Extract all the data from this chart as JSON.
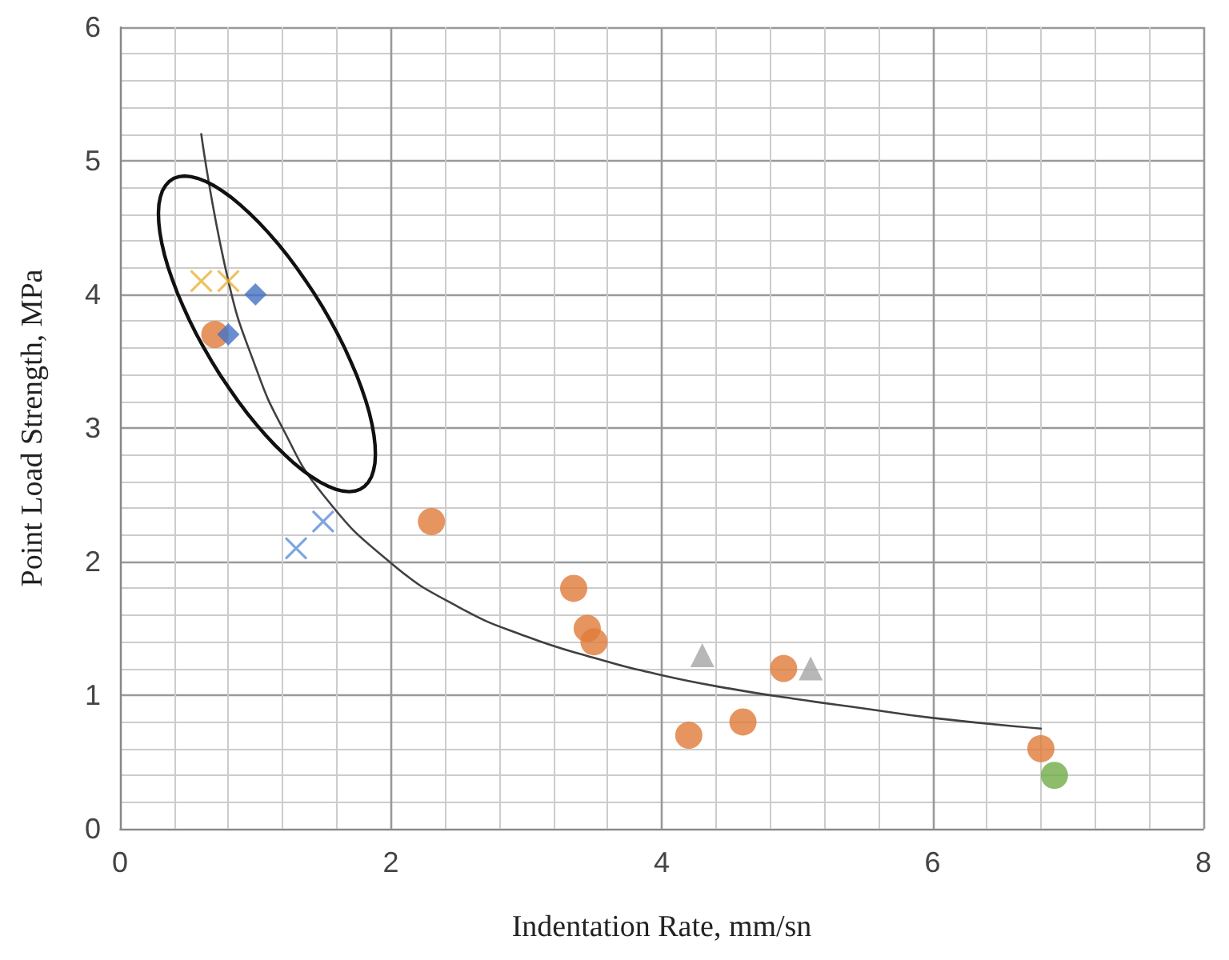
{
  "chart_data": {
    "type": "scatter",
    "xlabel": "Indentation Rate, mm/sn",
    "ylabel": "Point Load Strength, MPa",
    "xlim": [
      0,
      8
    ],
    "xticks": [
      0,
      2,
      4,
      6,
      8
    ],
    "ylim": [
      0,
      6
    ],
    "yticks": [
      0,
      1,
      2,
      3,
      4,
      5,
      6
    ],
    "grid": true,
    "series": [
      {
        "color": "#e07b39",
        "marker": "circle",
        "x": [
          0.7,
          2.3,
          3.35,
          3.45,
          3.5,
          4.2,
          4.6,
          4.9,
          6.8
        ],
        "values": [
          3.7,
          2.3,
          1.8,
          1.5,
          1.4,
          0.7,
          0.8,
          1.2,
          0.6
        ]
      },
      {
        "color": "#4472c4",
        "marker": "diamond",
        "x": [
          1.0,
          0.8
        ],
        "values": [
          4.0,
          3.7
        ]
      },
      {
        "color": "#e8b33a",
        "marker": "cross",
        "x": [
          0.6,
          0.8
        ],
        "values": [
          4.1,
          4.1
        ]
      },
      {
        "color": "#5b8fd6",
        "marker": "cross",
        "x": [
          1.3,
          1.5
        ],
        "values": [
          2.1,
          2.3
        ]
      },
      {
        "color": "#a5a5a5",
        "marker": "triangle",
        "x": [
          4.3,
          5.1
        ],
        "values": [
          1.3,
          1.2
        ]
      },
      {
        "color": "#70ad47",
        "marker": "circle",
        "x": [
          6.9
        ],
        "values": [
          0.4
        ]
      },
      {
        "type": "line",
        "color": "#404040",
        "marker": "none",
        "line_style": "solid",
        "x": [
          0.6,
          0.8,
          1.0,
          1.2,
          1.5,
          2.0,
          2.5,
          3.0,
          3.5,
          4.0,
          4.5,
          5.0,
          5.5,
          6.0,
          6.8
        ],
        "values": [
          5.2,
          4.1,
          3.46,
          3.0,
          2.5,
          1.99,
          1.66,
          1.44,
          1.28,
          1.15,
          1.05,
          0.97,
          0.9,
          0.83,
          0.75
        ]
      }
    ]
  }
}
